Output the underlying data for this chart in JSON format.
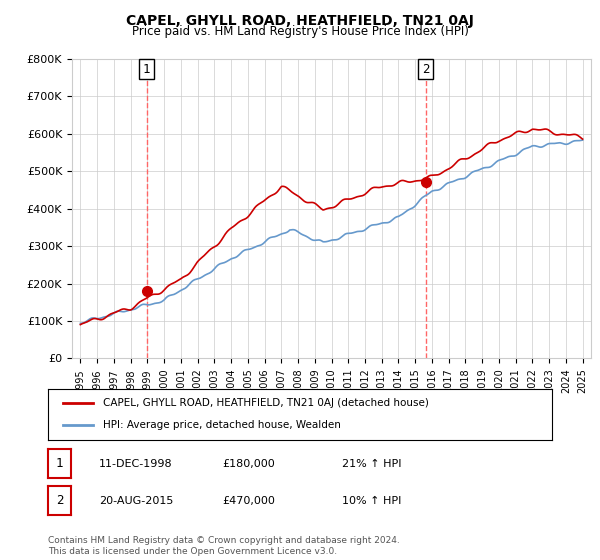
{
  "title": "CAPEL, GHYLL ROAD, HEATHFIELD, TN21 0AJ",
  "subtitle": "Price paid vs. HM Land Registry's House Price Index (HPI)",
  "ylim": [
    0,
    800000
  ],
  "yticks": [
    0,
    100000,
    200000,
    300000,
    400000,
    500000,
    600000,
    700000,
    800000
  ],
  "ytick_labels": [
    "£0",
    "£100K",
    "£200K",
    "£300K",
    "£400K",
    "£500K",
    "£600K",
    "£700K",
    "£800K"
  ],
  "red_color": "#cc0000",
  "blue_color": "#6699cc",
  "marker1_date": 1998.95,
  "marker1_value": 180000,
  "marker2_date": 2015.64,
  "marker2_value": 470000,
  "vline_color": "#ff6666",
  "legend_label_red": "CAPEL, GHYLL ROAD, HEATHFIELD, TN21 0AJ (detached house)",
  "legend_label_blue": "HPI: Average price, detached house, Wealden",
  "table_row1": [
    "1",
    "11-DEC-1998",
    "£180,000",
    "21% ↑ HPI"
  ],
  "table_row2": [
    "2",
    "20-AUG-2015",
    "£470,000",
    "10% ↑ HPI"
  ],
  "footnote": "Contains HM Land Registry data © Crown copyright and database right 2024.\nThis data is licensed under the Open Government Licence v3.0.",
  "background_color": "#ffffff",
  "grid_color": "#cccccc"
}
